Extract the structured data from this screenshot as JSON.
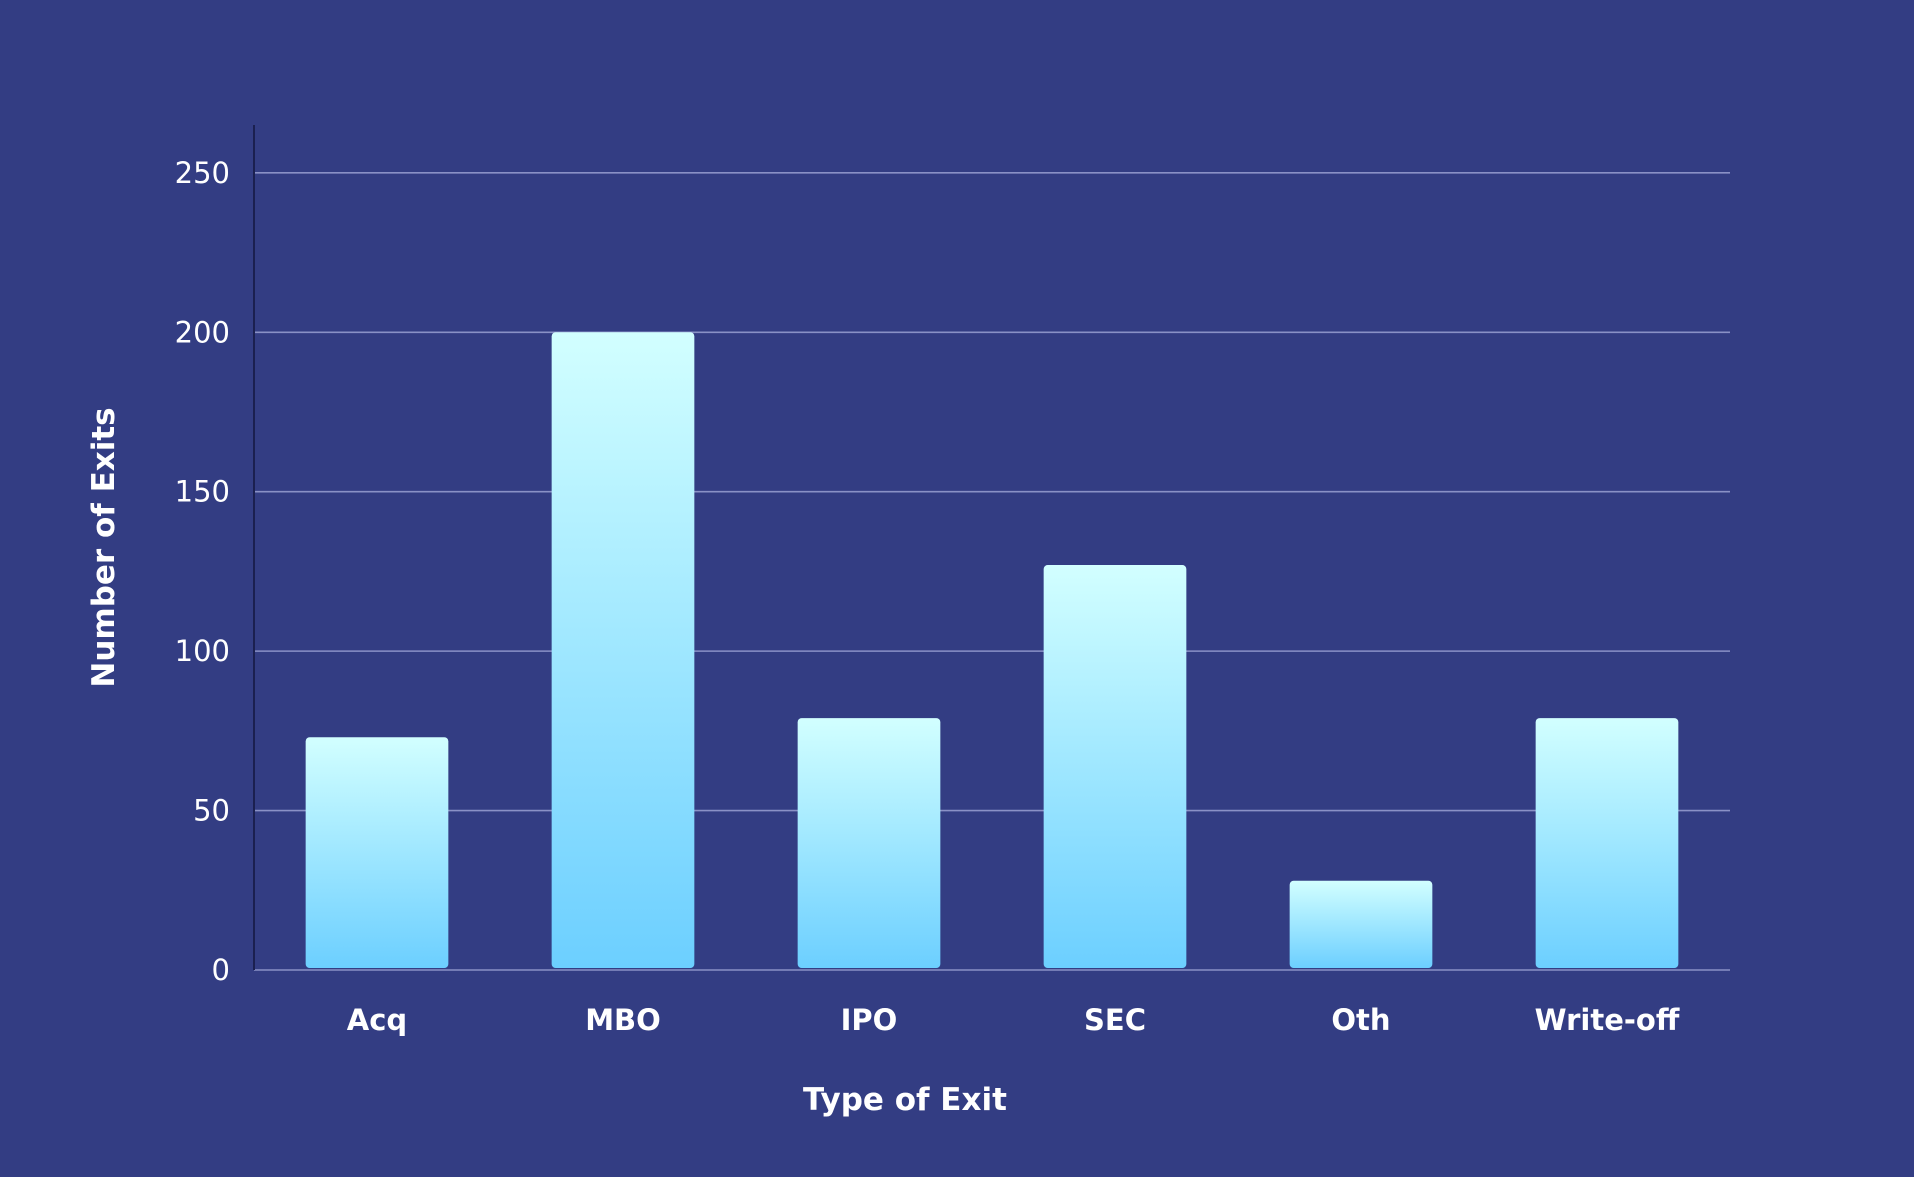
{
  "chart_data": {
    "type": "bar",
    "title": "",
    "xlabel": "Type of Exit",
    "ylabel": "Number of Exits",
    "categories": [
      "Acq",
      "MBO",
      "IPO",
      "SEC",
      "Oth",
      "Write-off"
    ],
    "values": [
      73,
      200,
      79,
      127,
      28,
      79
    ],
    "ylim": [
      0,
      265
    ],
    "yticks": [
      0,
      50,
      100,
      150,
      200,
      250
    ],
    "grid": true,
    "legend": "none",
    "colors": {
      "background": "#333d83",
      "bar_top": "#d2ffff",
      "bar_bottom": "#6ccfff",
      "grid": "#8a91c6",
      "text": "#ffffff"
    }
  }
}
